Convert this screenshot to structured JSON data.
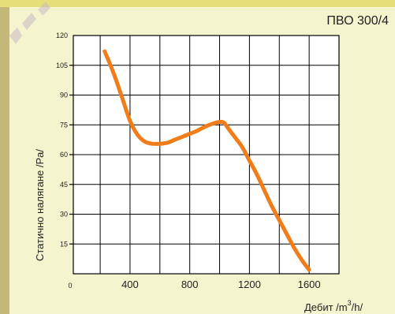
{
  "chart_data": {
    "type": "line",
    "title": "ПВО 300/4",
    "ylabel": "Статично налягане /Pa/",
    "xlabel_prefix": "Дебит /m",
    "xlabel_sup": "3",
    "xlabel_suffix": "/h/",
    "xlim": [
      0,
      1800
    ],
    "ylim": [
      0,
      120
    ],
    "x_ticks": [
      "0",
      "400",
      "800",
      "1200",
      "1600"
    ],
    "x_tick_values": [
      0,
      400,
      800,
      1200,
      1600
    ],
    "y_ticks": [
      "15",
      "30",
      "45",
      "60",
      "75",
      "90",
      "105",
      "120"
    ],
    "y_tick_values": [
      15,
      30,
      45,
      60,
      75,
      90,
      105,
      120
    ],
    "grid": true,
    "series": [
      {
        "color": "#f07d1a",
        "x": [
          230,
          290,
          350,
          400,
          450,
          500,
          550,
          600,
          650,
          700,
          750,
          800,
          850,
          900,
          950,
          1000,
          1030,
          1060,
          1100,
          1150,
          1200,
          1250,
          1300,
          1350,
          1400,
          1450,
          1500,
          1550,
          1600
        ],
        "y": [
          112,
          101,
          88,
          77,
          70,
          66.5,
          65.5,
          65.5,
          66,
          67.5,
          69,
          70.5,
          72,
          74,
          75.5,
          76.5,
          76,
          73,
          69,
          64,
          57,
          50,
          42,
          34,
          27,
          20,
          13,
          7,
          2
        ]
      }
    ]
  }
}
